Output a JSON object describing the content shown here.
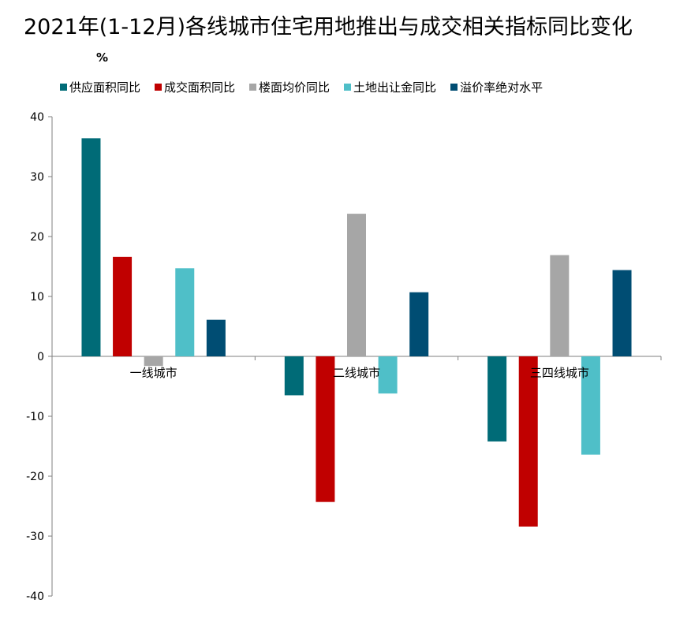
{
  "chart_data": {
    "type": "bar",
    "title": "2021年(1-12月)各线城市住宅用地推出与成交相关指标同比变化",
    "ylabel": "%",
    "xlabel": "",
    "categories": [
      "一线城市",
      "二线城市",
      "三四线城市"
    ],
    "ylim": [
      -40,
      40
    ],
    "yticks": [
      40,
      30,
      20,
      10,
      0,
      -10,
      -20,
      -30,
      -40
    ],
    "grid": false,
    "legend_position": "top",
    "series": [
      {
        "name": "供应面积同比",
        "color": "#006B77",
        "values": [
          36.4,
          -6.5,
          -14.2
        ]
      },
      {
        "name": "成交面积同比",
        "color": "#C00000",
        "values": [
          16.6,
          -24.3,
          -28.4
        ]
      },
      {
        "name": "楼面均价同比",
        "color": "#A6A6A6",
        "values": [
          -1.6,
          23.8,
          16.9
        ]
      },
      {
        "name": "土地出让金同比",
        "color": "#4FBFC8",
        "values": [
          14.7,
          -6.2,
          -16.4
        ]
      },
      {
        "name": "溢价率绝对水平",
        "color": "#004D73",
        "values": [
          6.1,
          10.7,
          14.4
        ]
      }
    ]
  }
}
